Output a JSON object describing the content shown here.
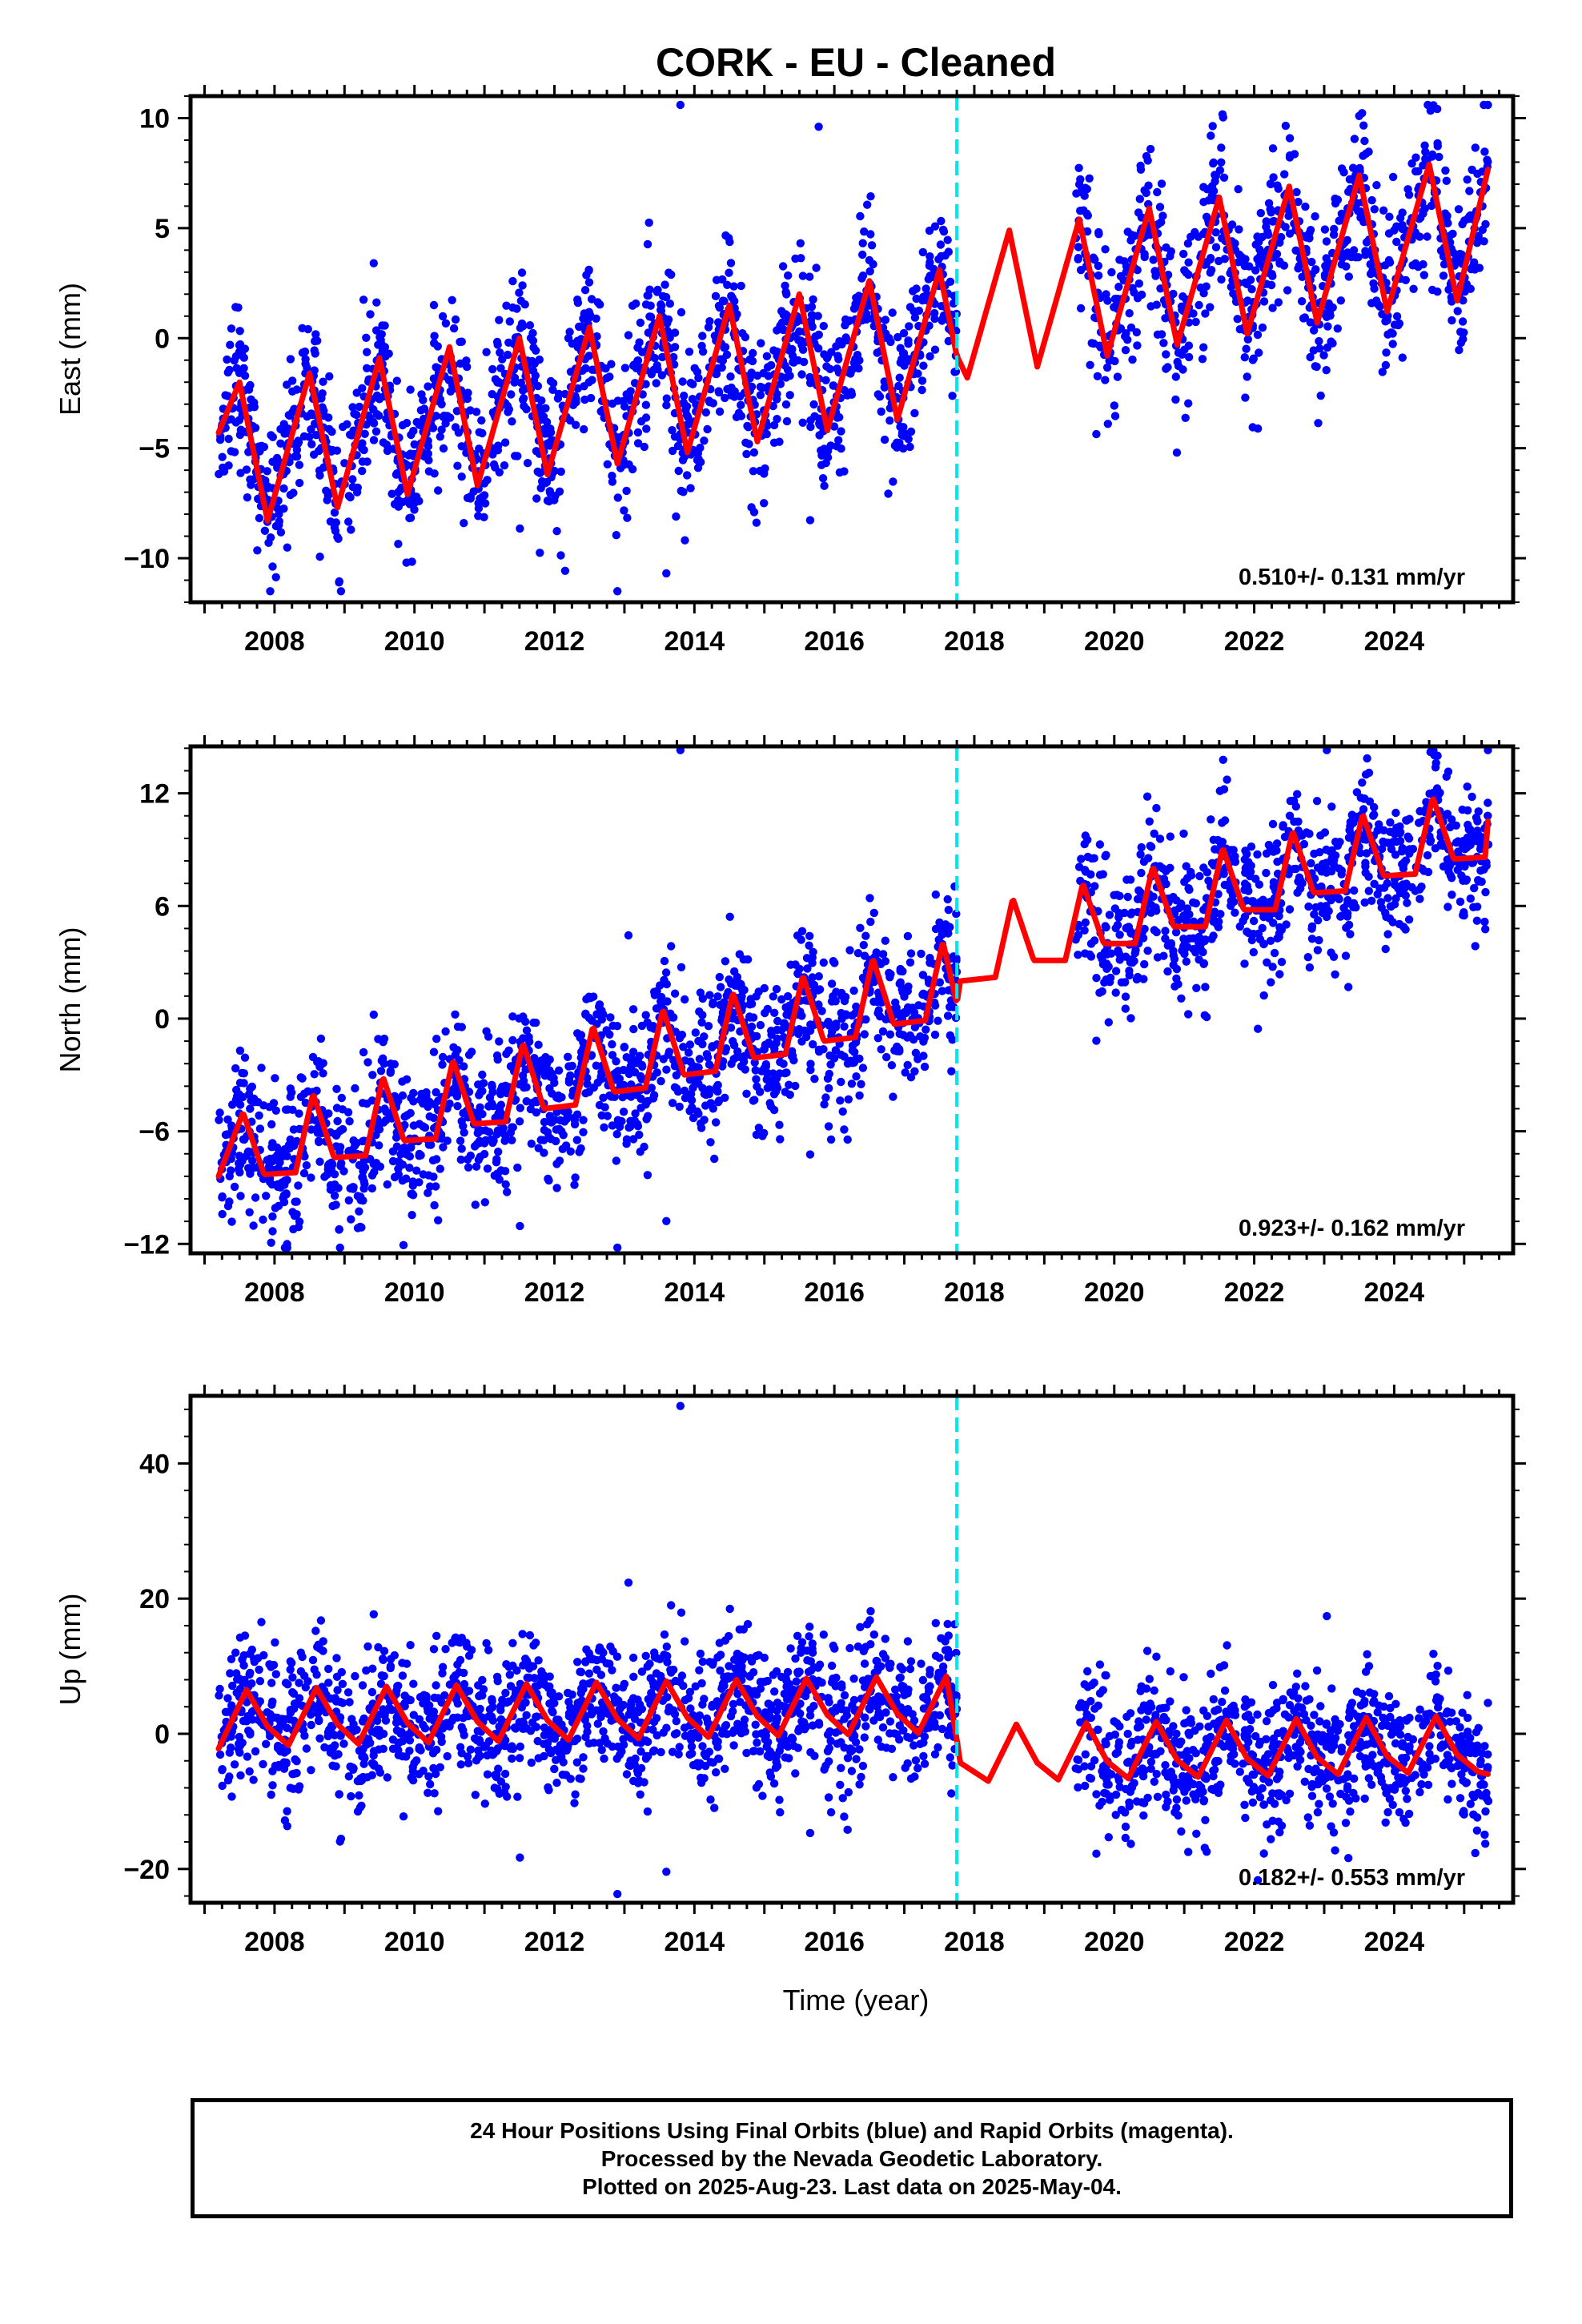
{
  "title": "CORK  - EU - Cleaned",
  "xlabel": "Time (year)",
  "caption": [
    "24 Hour Positions Using Final Orbits (blue) and Rapid Orbits (magenta).",
    "Processed by the Nevada Geodetic Laboratory.",
    "Plotted on 2025-Aug-23. Last data on 2025-May-04."
  ],
  "colors": {
    "observations": "#0000ff",
    "model": "#ff0000",
    "offset_line": "#00e5ee",
    "frame": "#000000"
  },
  "chart_data": [
    {
      "type": "scatter",
      "component": "east",
      "ylabel": "East (mm)",
      "rate_label": "0.510+/- 0.131 mm/yr",
      "xlim": [
        2006.8,
        2025.7
      ],
      "ylim": [
        -12,
        11
      ],
      "x_ticks": [
        2008,
        2010,
        2012,
        2014,
        2016,
        2018,
        2020,
        2022,
        2024
      ],
      "y_ticks": [
        10,
        5,
        0,
        -5,
        -10
      ],
      "offset_epoch": 2017.75,
      "data_gap": [
        2017.75,
        2019.45
      ],
      "series": [
        {
          "role": "observations",
          "color": "#0000ff",
          "x_range": [
            2007.2,
            2025.35
          ],
          "scatter_mm": 1.8,
          "outlier_min": -11.5,
          "outlier_max": 10.6
        },
        {
          "role": "model_fit",
          "color": "#ff0000",
          "x": [
            2007.2,
            2007.5,
            2007.9,
            2008.5,
            2008.9,
            2009.5,
            2009.9,
            2010.5,
            2010.9,
            2011.5,
            2011.9,
            2012.5,
            2012.9,
            2013.5,
            2013.9,
            2014.5,
            2014.9,
            2015.5,
            2015.9,
            2016.5,
            2016.9,
            2017.5,
            2017.75,
            2017.9,
            2018.5,
            2018.9,
            2019.5,
            2019.9,
            2020.5,
            2020.9,
            2021.5,
            2021.9,
            2022.5,
            2022.9,
            2023.5,
            2023.9,
            2024.5,
            2024.9,
            2025.35
          ],
          "y": [
            -4.3,
            -2.0,
            -8.3,
            -1.6,
            -7.7,
            -0.9,
            -7.1,
            -0.4,
            -6.7,
            0.0,
            -6.2,
            0.5,
            -5.7,
            1.0,
            -5.2,
            1.5,
            -4.7,
            2.0,
            -4.2,
            2.6,
            -3.7,
            3.1,
            -0.8,
            -1.8,
            4.9,
            -1.3,
            5.4,
            -0.8,
            5.9,
            -0.3,
            6.4,
            0.2,
            6.9,
            0.7,
            7.4,
            1.2,
            7.9,
            1.7,
            7.8
          ]
        }
      ]
    },
    {
      "type": "scatter",
      "component": "north",
      "ylabel": "North (mm)",
      "rate_label": "0.923+/- 0.162 mm/yr",
      "xlim": [
        2006.8,
        2025.7
      ],
      "ylim": [
        -12.5,
        14.5
      ],
      "x_ticks": [
        2008,
        2010,
        2012,
        2014,
        2016,
        2018,
        2020,
        2022,
        2024
      ],
      "y_ticks": [
        12,
        6,
        0,
        -6,
        -12
      ],
      "offset_epoch": 2017.75,
      "data_gap": [
        2017.75,
        2019.45
      ],
      "series": [
        {
          "role": "observations",
          "color": "#0000ff",
          "x_range": [
            2007.2,
            2025.35
          ],
          "scatter_mm": 1.9,
          "outlier_min": -12.2,
          "outlier_max": 14.3
        },
        {
          "role": "model_fit",
          "color": "#ff0000",
          "x": [
            2007.2,
            2007.55,
            2007.85,
            2008.3,
            2008.55,
            2008.85,
            2009.3,
            2009.55,
            2009.85,
            2010.3,
            2010.55,
            2010.85,
            2011.3,
            2011.55,
            2011.85,
            2012.3,
            2012.55,
            2012.85,
            2013.3,
            2013.55,
            2013.85,
            2014.3,
            2014.55,
            2014.85,
            2015.3,
            2015.55,
            2015.85,
            2016.3,
            2016.55,
            2016.85,
            2017.3,
            2017.55,
            2017.75,
            2017.8,
            2018.3,
            2018.55,
            2018.85,
            2019.3,
            2019.55,
            2019.85,
            2020.3,
            2020.55,
            2020.85,
            2021.3,
            2021.55,
            2021.85,
            2022.3,
            2022.55,
            2022.85,
            2023.3,
            2023.55,
            2023.85,
            2024.3,
            2024.55,
            2024.85,
            2025.3,
            2025.35
          ],
          "y": [
            -8.4,
            -5.0,
            -8.3,
            -8.2,
            -4.0,
            -7.4,
            -7.3,
            -3.1,
            -6.5,
            -6.4,
            -2.2,
            -5.6,
            -5.5,
            -1.3,
            -4.8,
            -4.6,
            -0.4,
            -3.9,
            -3.7,
            0.5,
            -3.0,
            -2.8,
            1.4,
            -2.1,
            -1.9,
            2.3,
            -1.2,
            -1.0,
            3.2,
            -0.3,
            -0.1,
            4.1,
            0.8,
            2.0,
            2.2,
            6.4,
            3.1,
            3.1,
            7.2,
            4.0,
            4.0,
            8.1,
            4.9,
            4.9,
            9.1,
            5.8,
            5.8,
            10.0,
            6.7,
            6.8,
            10.9,
            7.6,
            7.7,
            11.8,
            8.5,
            8.6,
            11.0
          ]
        }
      ]
    },
    {
      "type": "scatter",
      "component": "up",
      "ylabel": "Up (mm)",
      "rate_label": "0.182+/- 0.553 mm/yr",
      "xlim": [
        2006.8,
        2025.7
      ],
      "ylim": [
        -25,
        50
      ],
      "x_ticks": [
        2008,
        2010,
        2012,
        2014,
        2016,
        2018,
        2020,
        2022,
        2024
      ],
      "y_ticks": [
        40,
        20,
        0,
        -20
      ],
      "offset_epoch": 2017.75,
      "data_gap": [
        2017.75,
        2019.45
      ],
      "series": [
        {
          "role": "observations",
          "color": "#0000ff",
          "x_range": [
            2007.2,
            2025.35
          ],
          "scatter_mm": 5,
          "outlier_min": -23.7,
          "outlier_max": 48.5
        },
        {
          "role": "model_fit",
          "color": "#ff0000",
          "x": [
            2007.2,
            2007.6,
            2007.9,
            2008.2,
            2008.6,
            2008.9,
            2009.2,
            2009.6,
            2009.9,
            2010.2,
            2010.6,
            2010.9,
            2011.2,
            2011.6,
            2011.9,
            2012.2,
            2012.6,
            2012.9,
            2013.2,
            2013.6,
            2013.9,
            2014.2,
            2014.6,
            2014.9,
            2015.2,
            2015.6,
            2015.9,
            2016.2,
            2016.6,
            2016.9,
            2017.2,
            2017.6,
            2017.75,
            2017.8,
            2018.2,
            2018.6,
            2018.9,
            2019.2,
            2019.6,
            2019.9,
            2020.2,
            2020.6,
            2020.9,
            2021.2,
            2021.6,
            2021.9,
            2022.2,
            2022.6,
            2022.9,
            2023.2,
            2023.6,
            2023.9,
            2024.2,
            2024.6,
            2024.9,
            2025.2,
            2025.35
          ],
          "y": [
            -2.2,
            6.5,
            1.1,
            -1.7,
            6.8,
            1.4,
            -1.5,
            7.0,
            1.6,
            -1.3,
            7.2,
            1.8,
            -1.1,
            7.4,
            2.0,
            -0.9,
            7.6,
            2.2,
            -0.7,
            7.8,
            2.4,
            -0.5,
            8.0,
            2.6,
            -0.3,
            8.2,
            2.8,
            -0.1,
            8.4,
            3.0,
            0.1,
            8.5,
            -0.8,
            -4.3,
            -7.0,
            1.4,
            -4.3,
            -6.8,
            1.6,
            -4.1,
            -6.6,
            1.8,
            -3.9,
            -6.4,
            2.0,
            -3.7,
            -6.2,
            2.2,
            -3.5,
            -6.0,
            2.4,
            -3.3,
            -5.8,
            2.6,
            -3.1,
            -5.6,
            -6.0
          ]
        }
      ]
    }
  ]
}
